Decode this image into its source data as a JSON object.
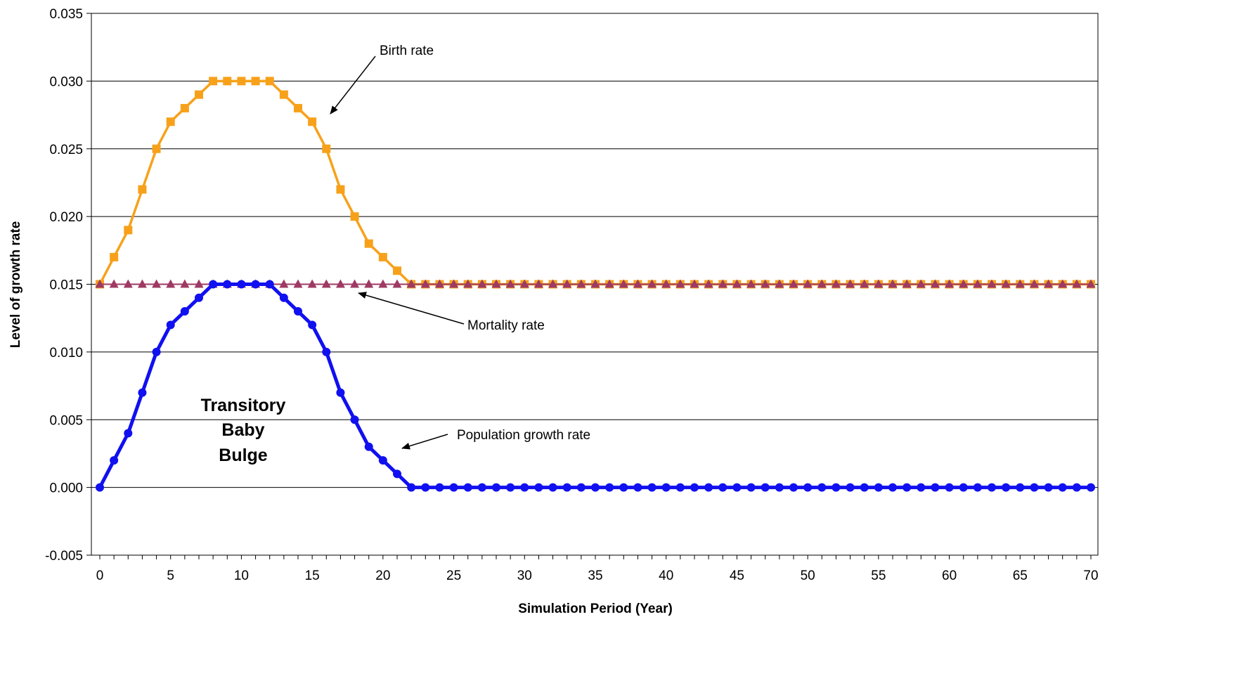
{
  "chart_data": {
    "type": "line",
    "title": "",
    "xlabel": "Simulation Period (Year)",
    "ylabel": "Level of growth rate",
    "xlim": [
      0,
      70
    ],
    "ylim": [
      -0.005,
      0.035
    ],
    "x_ticks": [
      "0",
      "5",
      "10",
      "15",
      "20",
      "25",
      "30",
      "35",
      "40",
      "45",
      "50",
      "55",
      "60",
      "65",
      "70"
    ],
    "y_ticks": [
      "-0.005",
      "0.000",
      "0.005",
      "0.010",
      "0.015",
      "0.020",
      "0.025",
      "0.030",
      "0.035"
    ],
    "grid": "horizontal",
    "x": [
      0,
      1,
      2,
      3,
      4,
      5,
      6,
      7,
      8,
      9,
      10,
      11,
      12,
      13,
      14,
      15,
      16,
      17,
      18,
      19,
      20,
      21,
      22,
      23,
      24,
      25,
      26,
      27,
      28,
      29,
      30,
      31,
      32,
      33,
      34,
      35,
      36,
      37,
      38,
      39,
      40,
      41,
      42,
      43,
      44,
      45,
      46,
      47,
      48,
      49,
      50,
      51,
      52,
      53,
      54,
      55,
      56,
      57,
      58,
      59,
      60,
      61,
      62,
      63,
      64,
      65,
      66,
      67,
      68,
      69,
      70
    ],
    "series": [
      {
        "name": "Birth rate",
        "color": "#F7A11A",
        "marker": "square",
        "values": [
          0.015,
          0.017,
          0.019,
          0.022,
          0.025,
          0.027,
          0.028,
          0.029,
          0.03,
          0.03,
          0.03,
          0.03,
          0.03,
          0.029,
          0.028,
          0.027,
          0.025,
          0.022,
          0.02,
          0.018,
          0.017,
          0.016,
          0.015,
          0.015,
          0.015,
          0.015,
          0.015,
          0.015,
          0.015,
          0.015,
          0.015,
          0.015,
          0.015,
          0.015,
          0.015,
          0.015,
          0.015,
          0.015,
          0.015,
          0.015,
          0.015,
          0.015,
          0.015,
          0.015,
          0.015,
          0.015,
          0.015,
          0.015,
          0.015,
          0.015,
          0.015,
          0.015,
          0.015,
          0.015,
          0.015,
          0.015,
          0.015,
          0.015,
          0.015,
          0.015,
          0.015,
          0.015,
          0.015,
          0.015,
          0.015,
          0.015,
          0.015,
          0.015,
          0.015,
          0.015,
          0.015
        ]
      },
      {
        "name": "Mortality rate",
        "color": "#9E3A63",
        "marker": "triangle",
        "values": [
          0.015,
          0.015,
          0.015,
          0.015,
          0.015,
          0.015,
          0.015,
          0.015,
          0.015,
          0.015,
          0.015,
          0.015,
          0.015,
          0.015,
          0.015,
          0.015,
          0.015,
          0.015,
          0.015,
          0.015,
          0.015,
          0.015,
          0.015,
          0.015,
          0.015,
          0.015,
          0.015,
          0.015,
          0.015,
          0.015,
          0.015,
          0.015,
          0.015,
          0.015,
          0.015,
          0.015,
          0.015,
          0.015,
          0.015,
          0.015,
          0.015,
          0.015,
          0.015,
          0.015,
          0.015,
          0.015,
          0.015,
          0.015,
          0.015,
          0.015,
          0.015,
          0.015,
          0.015,
          0.015,
          0.015,
          0.015,
          0.015,
          0.015,
          0.015,
          0.015,
          0.015,
          0.015,
          0.015,
          0.015,
          0.015,
          0.015,
          0.015,
          0.015,
          0.015,
          0.015,
          0.015
        ]
      },
      {
        "name": "Population growth rate",
        "color": "#1010F0",
        "marker": "circle",
        "values": [
          0.0,
          0.002,
          0.004,
          0.007,
          0.01,
          0.012,
          0.013,
          0.014,
          0.015,
          0.015,
          0.015,
          0.015,
          0.015,
          0.014,
          0.013,
          0.012,
          0.01,
          0.007,
          0.005,
          0.003,
          0.002,
          0.001,
          0.0,
          0.0,
          0.0,
          0.0,
          0.0,
          0.0,
          0.0,
          0.0,
          0.0,
          0.0,
          0.0,
          0.0,
          0.0,
          0.0,
          0.0,
          0.0,
          0.0,
          0.0,
          0.0,
          0.0,
          0.0,
          0.0,
          0.0,
          0.0,
          0.0,
          0.0,
          0.0,
          0.0,
          0.0,
          0.0,
          0.0,
          0.0,
          0.0,
          0.0,
          0.0,
          0.0,
          0.0,
          0.0,
          0.0,
          0.0,
          0.0,
          0.0,
          0.0,
          0.0,
          0.0,
          0.0,
          0.0,
          0.0,
          0.0
        ]
      }
    ],
    "annotations": {
      "birth_label": "Birth rate",
      "mortality_label": "Mortality rate",
      "population_label": "Population growth rate",
      "bulge_line1": "Transitory",
      "bulge_line2": "Baby",
      "bulge_line3": "Bulge"
    }
  }
}
